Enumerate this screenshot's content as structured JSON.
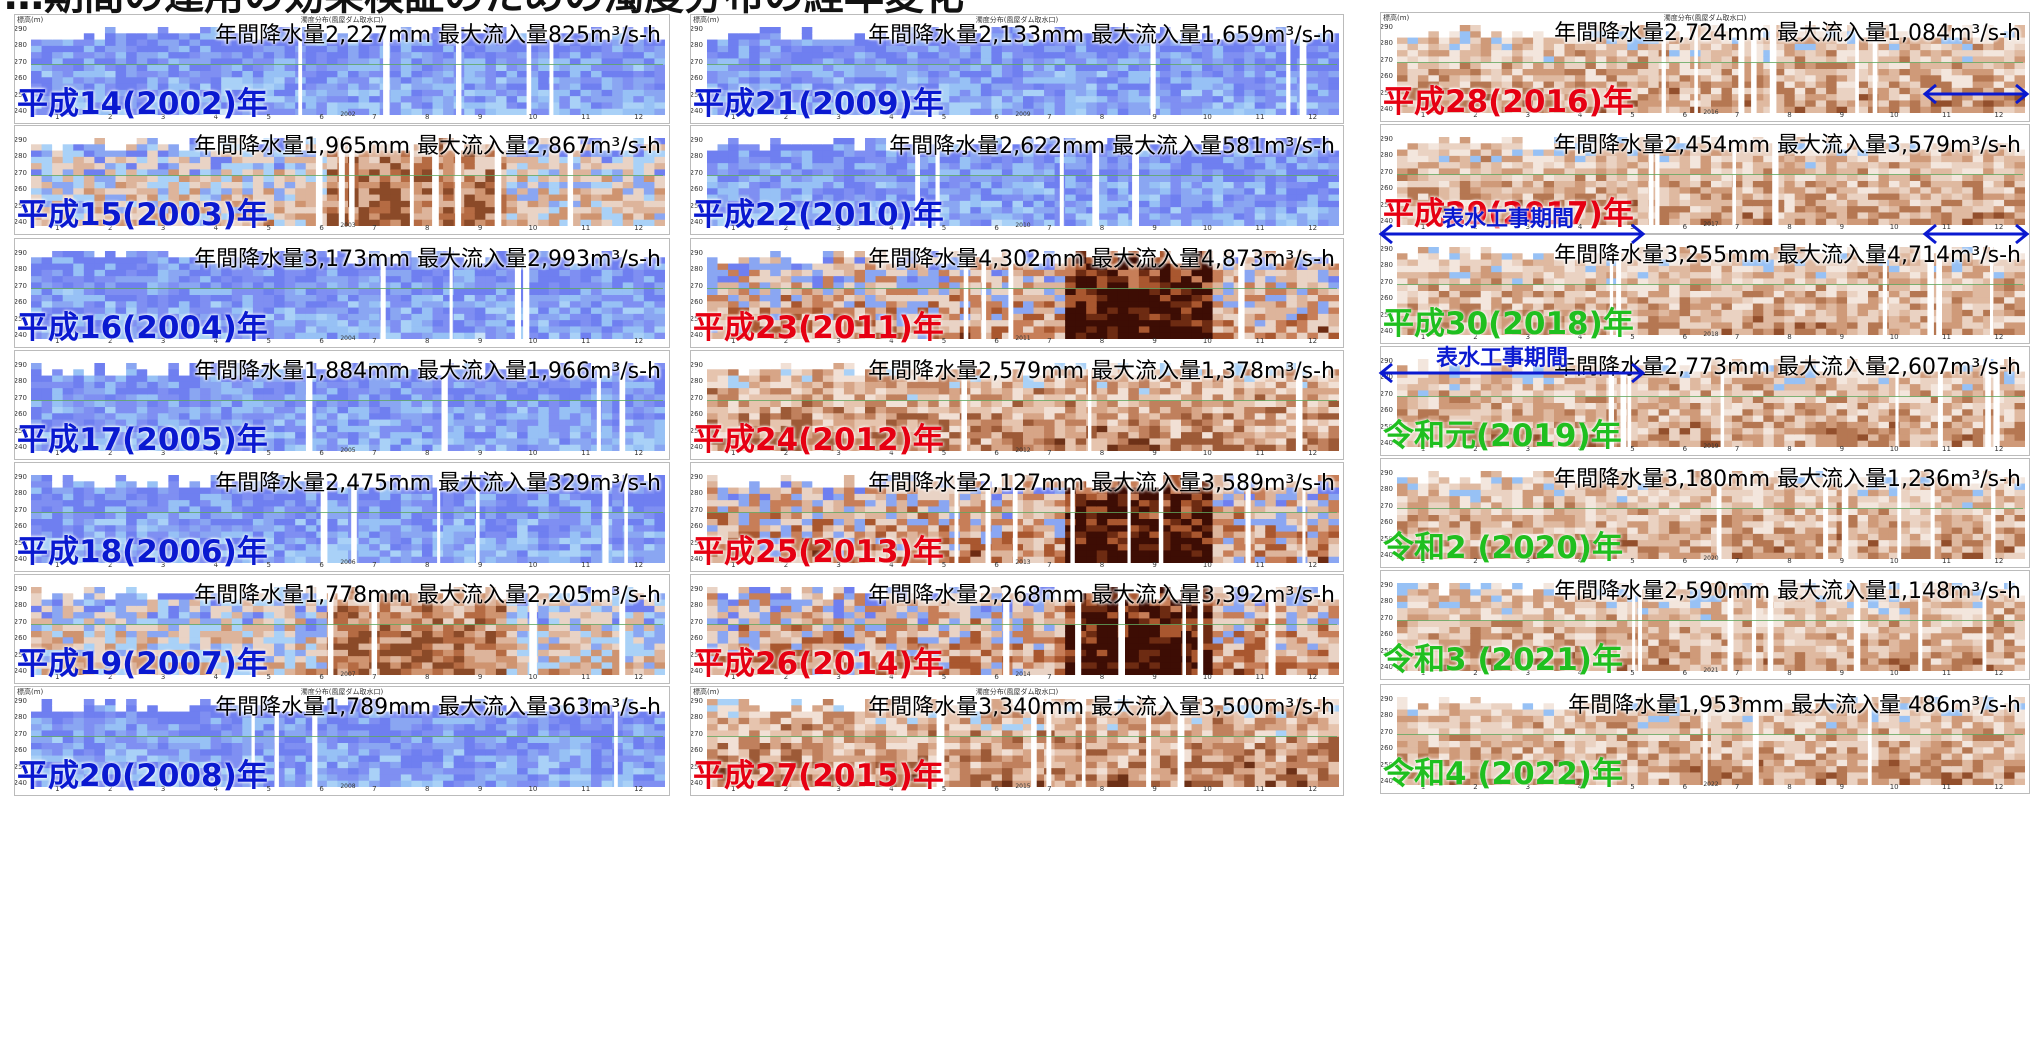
{
  "title": "…期間の運用の効果検証のための濁度分布の経年変化",
  "colors": {
    "heisei_early": "#0a19d0",
    "heisei_late": "#e60012",
    "recent": "#1fbf1f"
  },
  "chart_data": [
    {
      "type": "heatmap",
      "year_label": "平成14(2002)年",
      "color": "heisei_early",
      "stats": "年間降水量2,227mm 最大流入量825m³/s-h",
      "header": "濁度分布(風屋ダム取水口)",
      "style": "blue",
      "ylabel": "標高(m)",
      "yticks": [
        "290",
        "280",
        "270",
        "260",
        "250",
        "240"
      ],
      "xticks": [
        "1",
        "2",
        "3",
        "4",
        "5",
        "6",
        "7",
        "8",
        "9",
        "10",
        "11",
        "12"
      ],
      "year_axis": "2002"
    },
    {
      "type": "heatmap",
      "year_label": "平成15(2003)年",
      "color": "heisei_early",
      "stats": "年間降水量1,965mm 最大流入量2,867m³/s-h",
      "header": "",
      "style": "mixed",
      "ylabel": "",
      "yticks": [
        "290",
        "280",
        "270",
        "260",
        "250",
        "240"
      ],
      "xticks": [
        "1",
        "2",
        "3",
        "4",
        "5",
        "6",
        "7",
        "8",
        "9",
        "10",
        "11",
        "12"
      ],
      "year_axis": "2003"
    },
    {
      "type": "heatmap",
      "year_label": "平成16(2004)年",
      "color": "heisei_early",
      "stats": "年間降水量3,173mm 最大流入量2,993m³/s-h",
      "header": "",
      "style": "blue",
      "ylabel": "",
      "yticks": [
        "290",
        "280",
        "270",
        "260",
        "250",
        "240"
      ],
      "xticks": [
        "1",
        "2",
        "3",
        "4",
        "5",
        "6",
        "7",
        "8",
        "9",
        "10",
        "11",
        "12"
      ],
      "year_axis": "2004"
    },
    {
      "type": "heatmap",
      "year_label": "平成17(2005)年",
      "color": "heisei_early",
      "stats": "年間降水量1,884mm 最大流入量1,966m³/s-h",
      "header": "",
      "style": "blue",
      "ylabel": "",
      "yticks": [
        "290",
        "280",
        "270",
        "260",
        "250",
        "240"
      ],
      "xticks": [
        "1",
        "2",
        "3",
        "4",
        "5",
        "6",
        "7",
        "8",
        "9",
        "10",
        "11",
        "12"
      ],
      "year_axis": "2005"
    },
    {
      "type": "heatmap",
      "year_label": "平成18(2006)年",
      "color": "heisei_early",
      "stats": "年間降水量2,475mm 最大流入量329m³/s-h",
      "header": "",
      "style": "blue",
      "ylabel": "",
      "yticks": [
        "290",
        "280",
        "270",
        "260",
        "250",
        "240"
      ],
      "xticks": [
        "1",
        "2",
        "3",
        "4",
        "5",
        "6",
        "7",
        "8",
        "9",
        "10",
        "11",
        "12"
      ],
      "year_axis": "2006"
    },
    {
      "type": "heatmap",
      "year_label": "平成19(2007)年",
      "color": "heisei_early",
      "stats": "年間降水量1,778mm 最大流入量2,205m³/s-h",
      "header": "",
      "style": "mixed",
      "ylabel": "",
      "yticks": [
        "290",
        "280",
        "270",
        "260",
        "250",
        "240"
      ],
      "xticks": [
        "1",
        "2",
        "3",
        "4",
        "5",
        "6",
        "7",
        "8",
        "9",
        "10",
        "11",
        "12"
      ],
      "year_axis": "2007"
    },
    {
      "type": "heatmap",
      "year_label": "平成20(2008)年",
      "color": "heisei_early",
      "stats": "年間降水量1,789mm 最大流入量363m³/s-h",
      "header": "濁度分布(風屋ダム取水口)",
      "style": "blue",
      "ylabel": "標高(m)",
      "yticks": [
        "290",
        "280",
        "270",
        "260",
        "250",
        "240"
      ],
      "xticks": [
        "1",
        "2",
        "3",
        "4",
        "5",
        "6",
        "7",
        "8",
        "9",
        "10",
        "11",
        "12"
      ],
      "year_axis": "2008"
    },
    {
      "type": "heatmap",
      "year_label": "平成21(2009)年",
      "color": "heisei_early",
      "stats": "年間降水量2,133mm 最大流入量1,659m³/s-h",
      "header": "濁度分布(風屋ダム取水口)",
      "style": "blue",
      "ylabel": "標高(m)",
      "yticks": [
        "290",
        "280",
        "270",
        "260",
        "250",
        "240"
      ],
      "xticks": [
        "1",
        "2",
        "3",
        "4",
        "5",
        "6",
        "7",
        "8",
        "9",
        "10",
        "11",
        "12"
      ],
      "year_axis": "2009"
    },
    {
      "type": "heatmap",
      "year_label": "平成22(2010)年",
      "color": "heisei_early",
      "stats": "年間降水量2,622mm 最大流入量581m³/s-h",
      "header": "",
      "style": "blue",
      "ylabel": "",
      "yticks": [
        "290",
        "280",
        "270",
        "260",
        "250",
        "240"
      ],
      "xticks": [
        "1",
        "2",
        "3",
        "4",
        "5",
        "6",
        "7",
        "8",
        "9",
        "10",
        "11",
        "12"
      ],
      "year_axis": "2010"
    },
    {
      "type": "heatmap",
      "year_label": "平成23(2011)年",
      "color": "heisei_late",
      "stats": "年間降水量4,302mm 最大流入量4,873m³/s-h",
      "header": "",
      "style": "dark",
      "ylabel": "",
      "yticks": [
        "290",
        "280",
        "270",
        "260",
        "250",
        "240"
      ],
      "xticks": [
        "1",
        "2",
        "3",
        "4",
        "5",
        "6",
        "7",
        "8",
        "9",
        "10",
        "11",
        "12"
      ],
      "year_axis": "2011"
    },
    {
      "type": "heatmap",
      "year_label": "平成24(2012)年",
      "color": "heisei_late",
      "stats": "年間降水量2,579mm 最大流入量1,378m³/s-h",
      "header": "",
      "style": "brown",
      "ylabel": "",
      "yticks": [
        "290",
        "280",
        "270",
        "260",
        "250",
        "240"
      ],
      "xticks": [
        "1",
        "2",
        "3",
        "4",
        "5",
        "6",
        "7",
        "8",
        "9",
        "10",
        "11",
        "12"
      ],
      "year_axis": "2012"
    },
    {
      "type": "heatmap",
      "year_label": "平成25(2013)年",
      "color": "heisei_late",
      "stats": "年間降水量2,127mm 最大流入量3,589m³/s-h",
      "header": "",
      "style": "dark",
      "ylabel": "",
      "yticks": [
        "290",
        "280",
        "270",
        "260",
        "250",
        "240"
      ],
      "xticks": [
        "1",
        "2",
        "3",
        "4",
        "5",
        "6",
        "7",
        "8",
        "9",
        "10",
        "11",
        "12"
      ],
      "year_axis": "2013"
    },
    {
      "type": "heatmap",
      "year_label": "平成26(2014)年",
      "color": "heisei_late",
      "stats": "年間降水量2,268mm 最大流入量3,392m³/s-h",
      "header": "",
      "style": "dark",
      "ylabel": "",
      "yticks": [
        "290",
        "280",
        "270",
        "260",
        "250",
        "240"
      ],
      "xticks": [
        "1",
        "2",
        "3",
        "4",
        "5",
        "6",
        "7",
        "8",
        "9",
        "10",
        "11",
        "12"
      ],
      "year_axis": "2014"
    },
    {
      "type": "heatmap",
      "year_label": "平成27(2015)年",
      "color": "heisei_late",
      "stats": "年間降水量3,340mm 最大流入量3,500m³/s-h",
      "header": "濁度分布(風屋ダム取水口)",
      "style": "brown",
      "ylabel": "標高(m)",
      "yticks": [
        "290",
        "280",
        "270",
        "260",
        "250",
        "240"
      ],
      "xticks": [
        "1",
        "2",
        "3",
        "4",
        "5",
        "6",
        "7",
        "8",
        "9",
        "10",
        "11",
        "12"
      ],
      "year_axis": "2015"
    },
    {
      "type": "heatmap",
      "year_label": "平成28(2016)年",
      "color": "heisei_late",
      "stats": "年間降水量2,724mm 最大流入量1,084m³/s-h",
      "header": "濁度分布(風屋ダム取水口)",
      "style": "brownlight",
      "ylabel": "標高(m)",
      "yticks": [
        "290",
        "280",
        "270",
        "260",
        "250",
        "240"
      ],
      "xticks": [
        "1",
        "2",
        "3",
        "4",
        "5",
        "6",
        "7",
        "8",
        "9",
        "10",
        "11",
        "12"
      ],
      "year_axis": "2016"
    },
    {
      "type": "heatmap",
      "year_label": "平成29(2017)年",
      "color": "heisei_late",
      "stats": "年間降水量2,454mm 最大流入量3,579m³/s-h",
      "header": "",
      "style": "brownlight",
      "ylabel": "",
      "yticks": [
        "290",
        "280",
        "270",
        "260",
        "250",
        "240"
      ],
      "xticks": [
        "1",
        "2",
        "3",
        "4",
        "5",
        "6",
        "7",
        "8",
        "9",
        "10",
        "11",
        "12"
      ],
      "year_axis": "2017"
    },
    {
      "type": "heatmap",
      "year_label": "平成30(2018)年",
      "color": "recent",
      "stats": "年間降水量3,255mm 最大流入量4,714m³/s-h",
      "header": "",
      "style": "brownlight",
      "ylabel": "",
      "yticks": [
        "290",
        "280",
        "270",
        "260",
        "250",
        "240"
      ],
      "xticks": [
        "1",
        "2",
        "3",
        "4",
        "5",
        "6",
        "7",
        "8",
        "9",
        "10",
        "11",
        "12"
      ],
      "year_axis": "2018"
    },
    {
      "type": "heatmap",
      "year_label": "令和元(2019)年",
      "color": "recent",
      "stats": "年間降水量2,773mm 最大流入量2,607m³/s-h",
      "header": "",
      "style": "brownlight",
      "ylabel": "",
      "yticks": [
        "290",
        "280",
        "270",
        "260",
        "250",
        "240"
      ],
      "xticks": [
        "1",
        "2",
        "3",
        "4",
        "5",
        "6",
        "7",
        "8",
        "9",
        "10",
        "11",
        "12"
      ],
      "year_axis": "2019"
    },
    {
      "type": "heatmap",
      "year_label": "令和2 (2020)年",
      "color": "recent",
      "stats": "年間降水量3,180mm 最大流入量1,236m³/s-h",
      "header": "",
      "style": "brownlight",
      "ylabel": "",
      "yticks": [
        "290",
        "280",
        "270",
        "260",
        "250",
        "240"
      ],
      "xticks": [
        "1",
        "2",
        "3",
        "4",
        "5",
        "6",
        "7",
        "8",
        "9",
        "10",
        "11",
        "12"
      ],
      "year_axis": "2020"
    },
    {
      "type": "heatmap",
      "year_label": "令和3 (2021)年",
      "color": "recent",
      "stats": "年間降水量2,590mm 最大流入量1,148m³/s-h",
      "header": "",
      "style": "brownlight",
      "ylabel": "",
      "yticks": [
        "290",
        "280",
        "270",
        "260",
        "250",
        "240"
      ],
      "xticks": [
        "1",
        "2",
        "3",
        "4",
        "5",
        "6",
        "7",
        "8",
        "9",
        "10",
        "11",
        "12"
      ],
      "year_axis": "2021"
    },
    {
      "type": "heatmap",
      "year_label": "令和4 (2022)年",
      "color": "recent",
      "stats": "年間降水量1,953mm 最大流入量 486m³/s-h",
      "header": "",
      "style": "brownlight",
      "ylabel": "",
      "yticks": [
        "290",
        "280",
        "270",
        "260",
        "250",
        "240"
      ],
      "xticks": [
        "1",
        "2",
        "3",
        "4",
        "5",
        "6",
        "7",
        "8",
        "9",
        "10",
        "11",
        "12"
      ],
      "year_axis": "2022"
    }
  ],
  "annotations": {
    "construction_label": "表水工事期間"
  }
}
